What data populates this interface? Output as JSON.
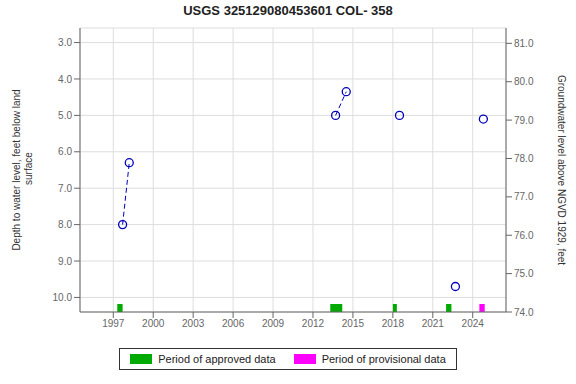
{
  "chart_data": {
    "type": "line",
    "title": "USGS 325129080453601 COL- 358",
    "segments": [
      {
        "x": [
          1997.7,
          1998.2
        ],
        "values": [
          8.0,
          6.3
        ]
      },
      {
        "x": [
          2013.7,
          2014.5
        ],
        "values": [
          5.0,
          4.35
        ]
      }
    ],
    "isolated_points": {
      "x": [
        2018.5,
        2022.7,
        2024.8
      ],
      "values": [
        5.0,
        9.7,
        5.1
      ]
    },
    "color": "#0000bb",
    "line_style": "dashed",
    "marker": "open_circle",
    "xlim": [
      1994.5,
      2026.5
    ],
    "xticks": [
      1997,
      2000,
      2003,
      2006,
      2009,
      2012,
      2015,
      2018,
      2021,
      2024
    ],
    "ylim": [
      10.4,
      2.6
    ],
    "yticks": [
      {
        "value": 3,
        "label": "3.0"
      },
      {
        "value": 4,
        "label": "4.0"
      },
      {
        "value": 5,
        "label": "5.0"
      },
      {
        "value": 6,
        "label": "6.0"
      },
      {
        "value": 7,
        "label": "7.0"
      },
      {
        "value": 8,
        "label": "8.0"
      },
      {
        "value": 9,
        "label": "9.0"
      },
      {
        "value": 10,
        "label": "10.0"
      }
    ],
    "y2lim": [
      74.0,
      81.4
    ],
    "y2ticks": [
      {
        "value": 74,
        "label": "74.0"
      },
      {
        "value": 75,
        "label": "75.0"
      },
      {
        "value": 76,
        "label": "76.0"
      },
      {
        "value": 77,
        "label": "77.0"
      },
      {
        "value": 78,
        "label": "78.0"
      },
      {
        "value": 79,
        "label": "79.0"
      },
      {
        "value": 80,
        "label": "80.0"
      },
      {
        "value": 81,
        "label": "81.0"
      }
    ],
    "ylabel": "Depth to water level, feet below land\n surface",
    "y2label": "Groundwater level above NGVD 1929, feet",
    "series": [
      {
        "name": "Period of approved data",
        "color": "#00aa00",
        "periods": [
          {
            "x": 1997.3,
            "width": 0.4
          },
          {
            "x": 2013.3,
            "width": 0.9
          },
          {
            "x": 2018.0,
            "width": 0.3
          },
          {
            "x": 2022.0,
            "width": 0.4
          }
        ]
      },
      {
        "name": "Period of provisional data",
        "color": "#ff00ff",
        "periods": [
          {
            "x": 2024.5,
            "width": 0.4
          }
        ]
      }
    ],
    "grid": true,
    "legend": "bottom"
  }
}
